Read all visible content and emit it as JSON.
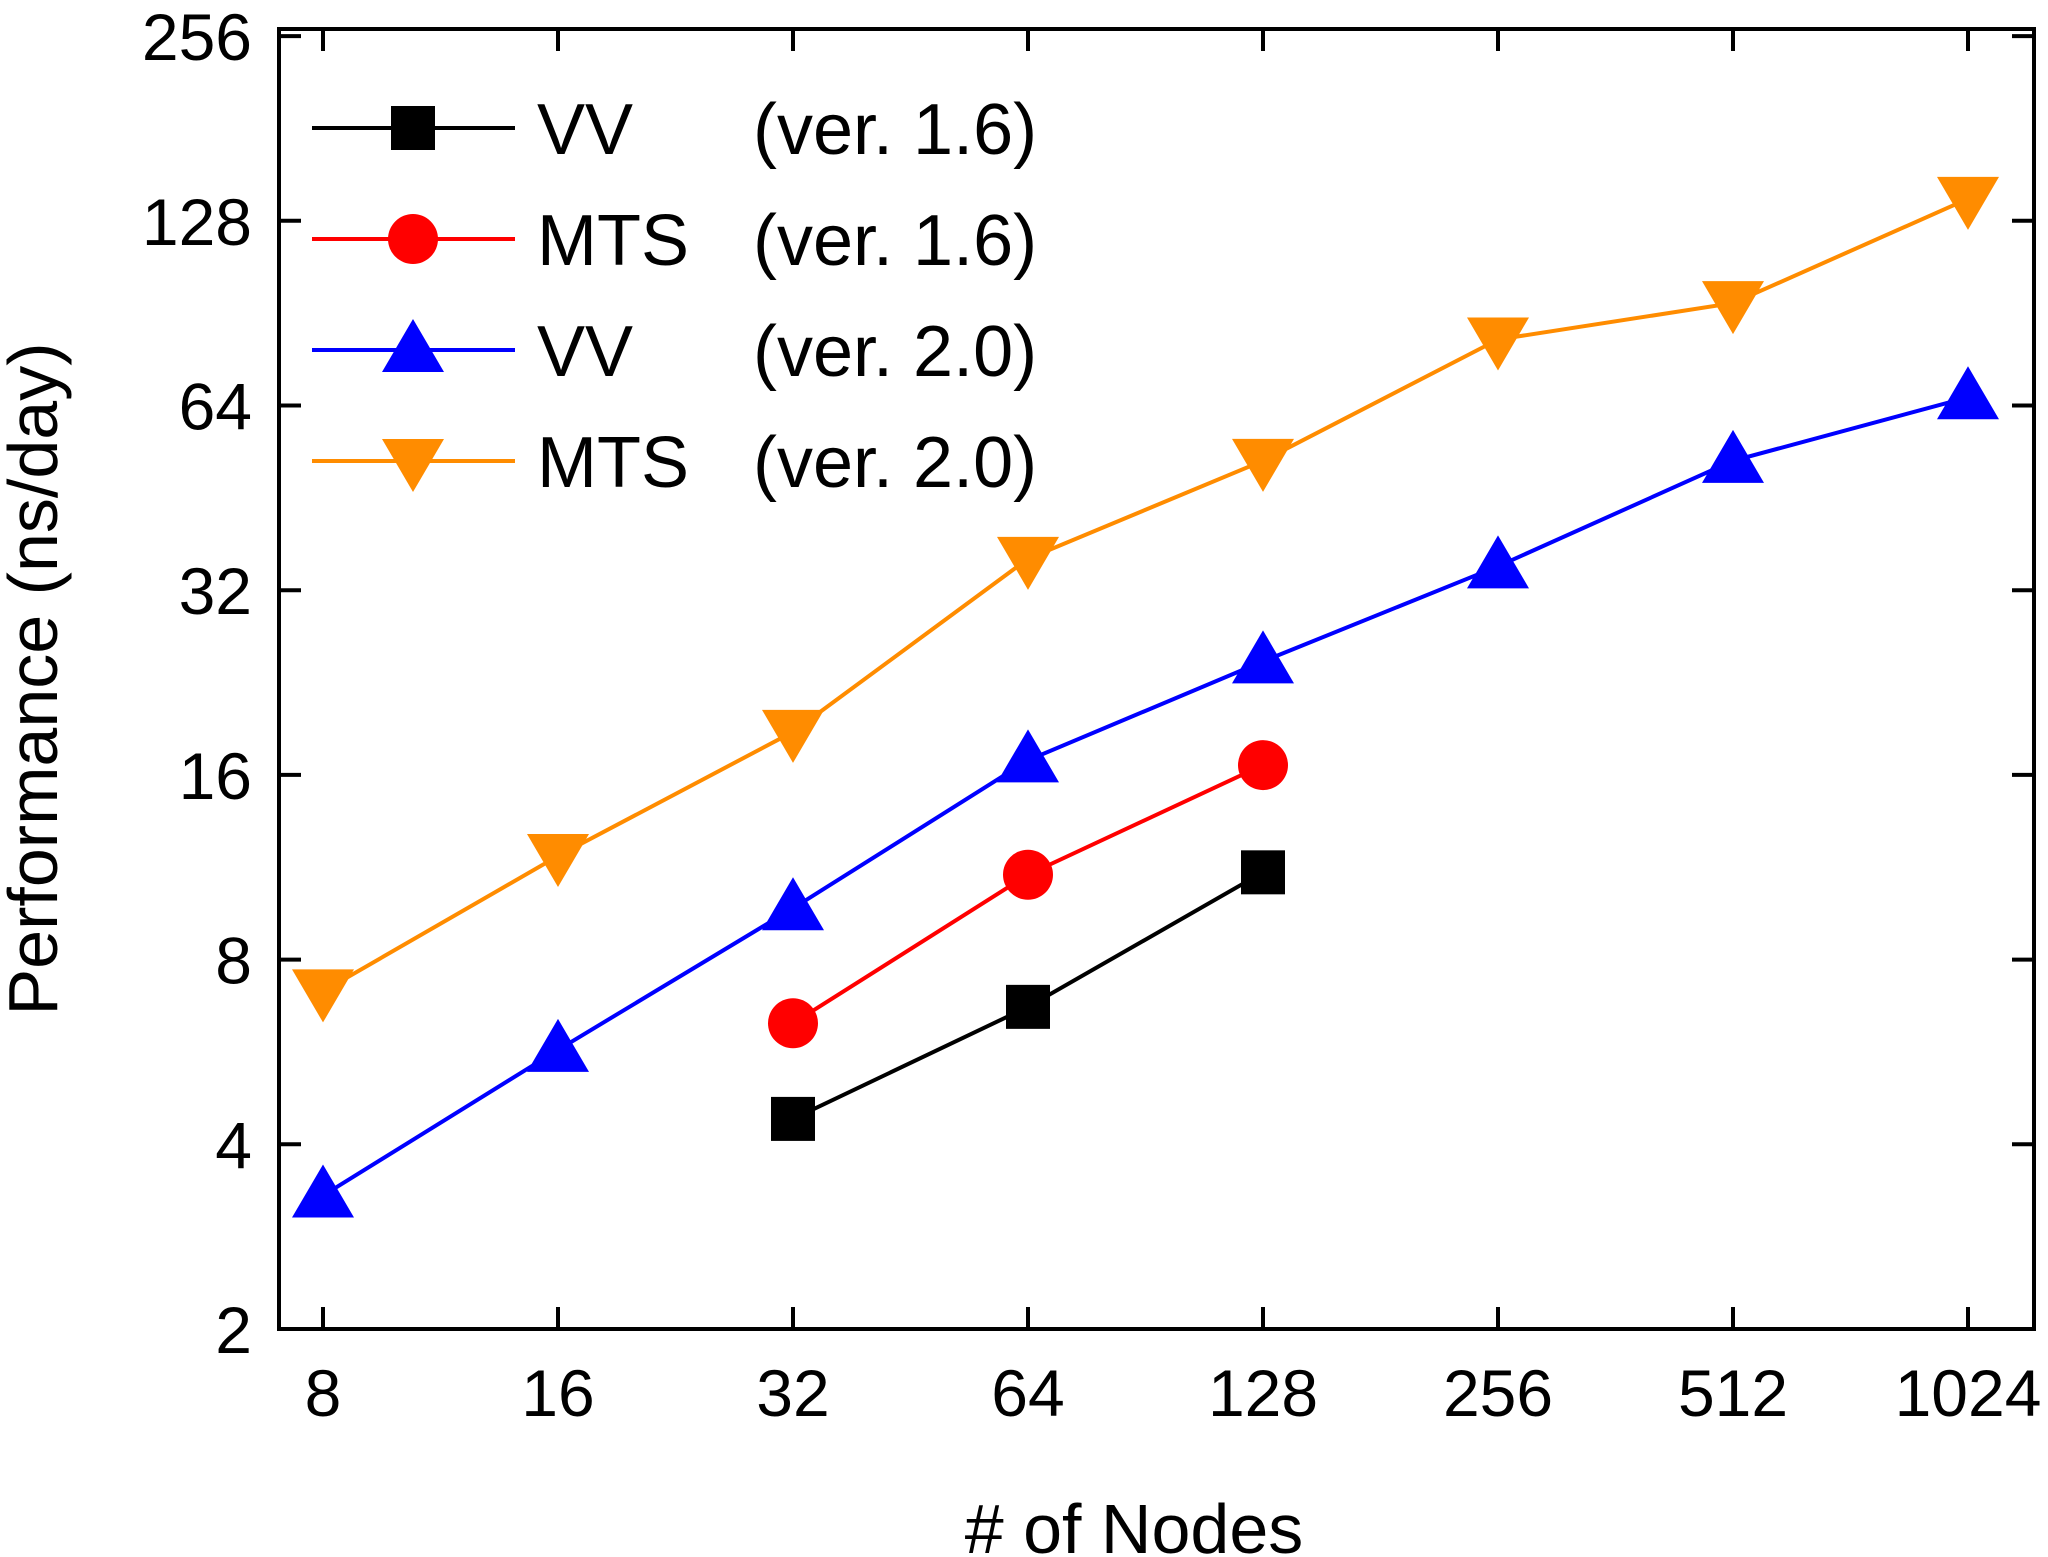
{
  "chart_data": {
    "type": "line",
    "title": "",
    "xlabel": "# of Nodes",
    "ylabel": "Performance (ns/day)",
    "x_scale": "log2",
    "y_scale": "log2",
    "x_ticks": [
      "8",
      "16",
      "32",
      "64",
      "128",
      "256",
      "512",
      "1024"
    ],
    "y_ticks": [
      "2",
      "4",
      "8",
      "16",
      "32",
      "64",
      "128",
      "256"
    ],
    "xlim": [
      8,
      1024
    ],
    "ylim": [
      2,
      256
    ],
    "grid": false,
    "legend_position": "top-left",
    "series": [
      {
        "name": "VV",
        "version": "(ver. 1.6)",
        "color": "#000000",
        "marker": "square",
        "x": [
          32,
          64,
          128
        ],
        "y": [
          4.4,
          6.7,
          11.1
        ]
      },
      {
        "name": "MTS",
        "version": "(ver. 1.6)",
        "color": "#ff0000",
        "marker": "circle",
        "x": [
          32,
          64,
          128
        ],
        "y": [
          6.3,
          11.0,
          16.6
        ]
      },
      {
        "name": "VV",
        "version": "(ver. 2.0)",
        "color": "#0000ff",
        "marker": "triangle-up",
        "x": [
          8,
          16,
          32,
          64,
          128,
          256,
          512,
          1024
        ],
        "y": [
          3.3,
          5.7,
          9.7,
          16.9,
          24.5,
          35.0,
          52.0,
          66.0
        ]
      },
      {
        "name": "MTS",
        "version": "(ver. 2.0)",
        "color": "#ff8c00",
        "marker": "triangle-down",
        "x": [
          8,
          16,
          32,
          64,
          128,
          256,
          512,
          1024
        ],
        "y": [
          7.1,
          11.8,
          18.8,
          36.0,
          52.0,
          82.0,
          94.0,
          139.0
        ]
      }
    ]
  }
}
